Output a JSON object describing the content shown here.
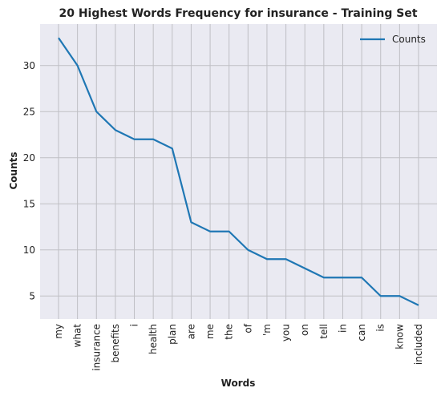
{
  "chart_data": {
    "type": "line",
    "title": "20 Highest Words Frequency for insurance - Training Set",
    "xlabel": "Words",
    "ylabel": "Counts",
    "categories": [
      "my",
      "what",
      "insurance",
      "benefits",
      "i",
      "health",
      "plan",
      "are",
      "me",
      "the",
      "of",
      "'m",
      "you",
      "on",
      "tell",
      "in",
      "can",
      "is",
      "know",
      "included"
    ],
    "series": [
      {
        "name": "Counts",
        "values": [
          33,
          30,
          25,
          23,
          22,
          22,
          21,
          13,
          12,
          12,
          10,
          9,
          9,
          8,
          7,
          7,
          7,
          5,
          5,
          4
        ]
      }
    ],
    "yticks": [
      5,
      10,
      15,
      20,
      25,
      30
    ],
    "ylim": [
      2.5,
      34.5
    ],
    "grid": true,
    "legend_position": "top-right",
    "colors": {
      "line": "#1f77b4",
      "plot_bg": "#eaeaf2",
      "grid": "#bfbfc4"
    }
  }
}
